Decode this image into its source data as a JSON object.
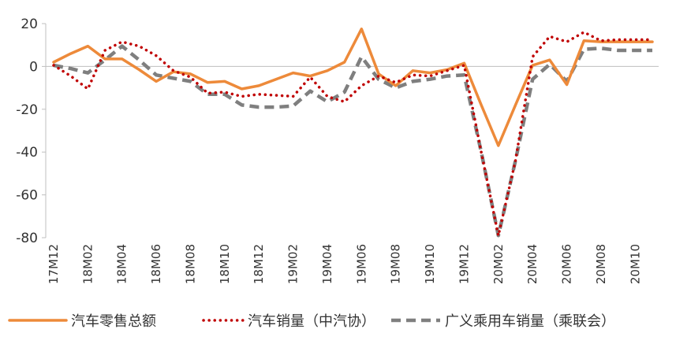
{
  "chart_data": {
    "type": "line",
    "title": "",
    "xlabel": "",
    "ylabel": "",
    "ylim": [
      -80,
      20
    ],
    "yticks": [
      20,
      0,
      -20,
      -40,
      -60,
      -80
    ],
    "xtick_labels": [
      "17M12",
      "18M02",
      "18M04",
      "18M06",
      "18M08",
      "18M10",
      "18M12",
      "19M02",
      "19M04",
      "19M06",
      "19M08",
      "19M10",
      "19M12",
      "20M02",
      "20M04",
      "20M06",
      "20M08",
      "20M10"
    ],
    "grid": false,
    "legend_position": "bottom",
    "series": [
      {
        "name": "汽车零售总额",
        "color": "#ED8A3A",
        "style": "solid",
        "values": [
          2.0,
          6.0,
          9.5,
          3.5,
          3.5,
          -1.5,
          -7.0,
          -2.5,
          -3.5,
          -7.5,
          -7.0,
          -10.5,
          -9.0,
          -6.0,
          -3.0,
          -4.5,
          -2.0,
          2.0,
          17.5,
          -3.5,
          -9.0,
          -2.0,
          -3.0,
          -1.5,
          1.5,
          -18.0,
          -37.0,
          -18.0,
          0.5,
          3.0,
          -8.5,
          12.0,
          11.5,
          11.5,
          11.5,
          11.5
        ]
      },
      {
        "name": "汽车销量（中汽协）",
        "color": "#C00000",
        "style": "dotted",
        "values": [
          0.5,
          -4.5,
          -10.5,
          7.5,
          11.5,
          9.5,
          5.0,
          -2.0,
          -5.0,
          -12.5,
          -12.0,
          -14.0,
          -13.0,
          -13.5,
          -14.0,
          -5.0,
          -14.0,
          -16.5,
          -9.0,
          -4.5,
          -7.5,
          -4.0,
          -4.5,
          -2.0,
          0.5,
          -40.0,
          -79.0,
          -44.0,
          4.5,
          14.0,
          11.5,
          16.0,
          12.0,
          12.5,
          12.5,
          12.5
        ]
      },
      {
        "name": "广义乘用车销量（乘联会）",
        "color": "#7F7F7F",
        "style": "dashed",
        "values": [
          0.5,
          -1.0,
          -3.0,
          3.0,
          9.5,
          3.0,
          -4.0,
          -5.5,
          -7.0,
          -13.0,
          -13.0,
          -18.0,
          -19.0,
          -19.0,
          -18.5,
          -11.5,
          -16.5,
          -12.0,
          4.5,
          -6.0,
          -10.0,
          -7.0,
          -6.0,
          -4.5,
          -4.0,
          -40.0,
          -79.0,
          -44.0,
          -6.0,
          1.0,
          -7.0,
          8.0,
          8.5,
          7.5,
          7.5,
          7.5
        ]
      }
    ]
  }
}
